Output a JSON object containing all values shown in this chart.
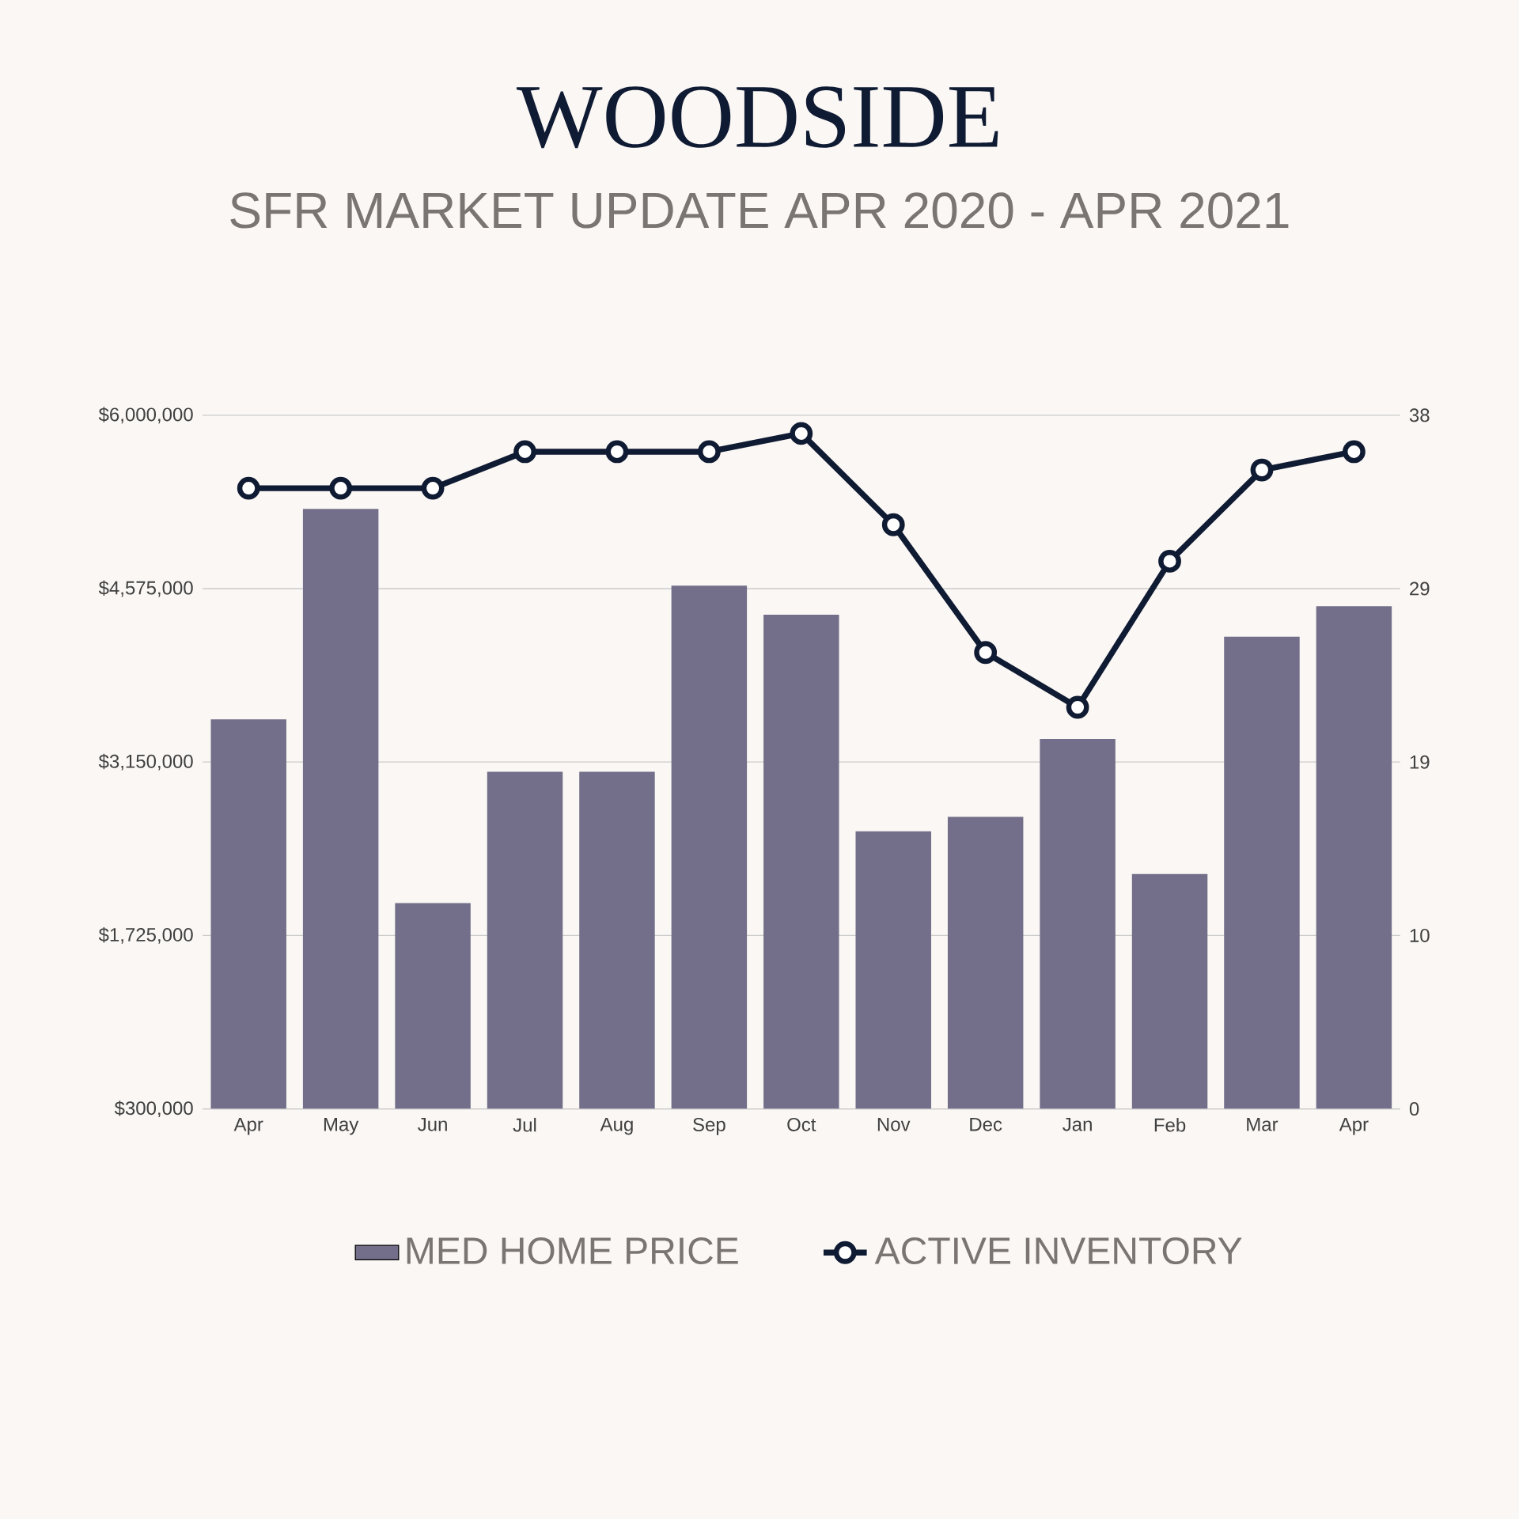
{
  "chart_data": {
    "type": "bar",
    "title": "WOODSIDE",
    "subtitle": "SFR MARKET UPDATE APR 2020 - APR 2021",
    "categories": [
      "Apr",
      "May",
      "Jun",
      "Jul",
      "Aug",
      "Sep",
      "Oct",
      "Nov",
      "Dec",
      "Jan",
      "Feb",
      "Mar",
      "Apr"
    ],
    "series": [
      {
        "name": "MED HOME PRICE",
        "color": "#736f8a",
        "values": [
          3500000,
          5230000,
          1990000,
          3070000,
          3070000,
          4600000,
          4360000,
          2580000,
          2700000,
          3340000,
          2230000,
          4180000,
          4430000
        ]
      },
      {
        "name": "ACTIVE INVENTORY",
        "type": "line",
        "axis": "y2",
        "color": "#0f1a33",
        "values": [
          34,
          34,
          34,
          36,
          36,
          36,
          37,
          32,
          25,
          22,
          30,
          35,
          36
        ]
      }
    ],
    "ylim": [
      300000,
      6000000
    ],
    "yticks": [
      {
        "value": 300000,
        "label": "$300,000"
      },
      {
        "value": 1725000,
        "label": "$1,725,000"
      },
      {
        "value": 3150000,
        "label": "$3,150,000"
      },
      {
        "value": 4575000,
        "label": "$4,575,000"
      },
      {
        "value": 6000000,
        "label": "$6,000,000"
      }
    ],
    "y2lim": [
      0,
      38
    ],
    "y2ticks": [
      0,
      {
        "value": 9.5,
        "label": "10"
      },
      19,
      {
        "value": 28.5,
        "label": "29"
      },
      38
    ],
    "grid": "y",
    "legend": "bottom",
    "marker": "circle",
    "line_style": "solid"
  }
}
